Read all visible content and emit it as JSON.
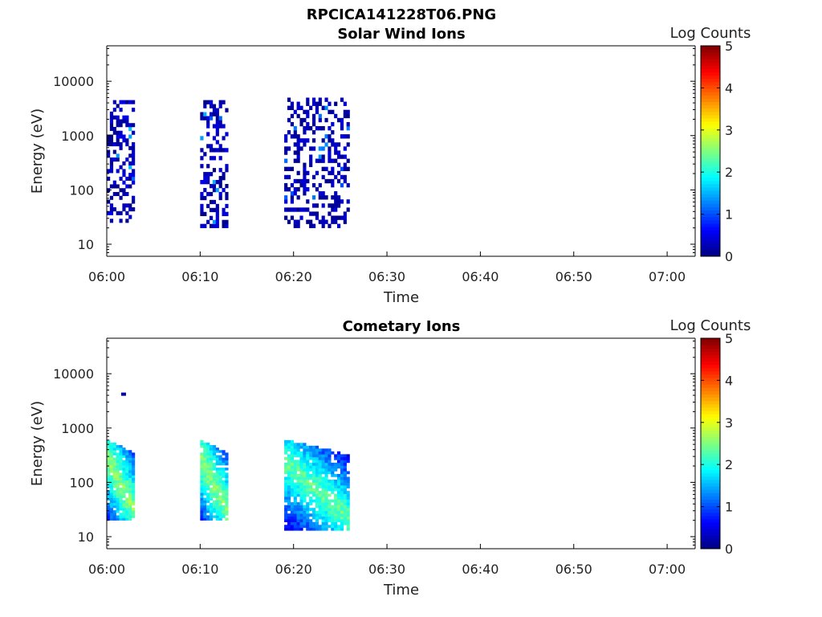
{
  "figure_title": "RPCICA141228T06.PNG",
  "colorbar": {
    "label": "Log Counts",
    "ticks": [
      "0",
      "1",
      "2",
      "3",
      "4",
      "5"
    ],
    "range": [
      0,
      5
    ],
    "colormap": "jet"
  },
  "chart_data": [
    {
      "type": "heatmap",
      "title": "Solar Wind Ions",
      "xlabel": "Time",
      "ylabel": "Energy (eV)",
      "x_ticks": [
        "06:00",
        "06:10",
        "06:20",
        "06:30",
        "06:40",
        "06:50",
        "07:00"
      ],
      "xlim": [
        "06:00",
        "07:03"
      ],
      "y_scale": "log",
      "y_ticks": [
        "10",
        "100",
        "1000",
        "10000"
      ],
      "ylim": [
        6,
        45000
      ],
      "color_range": [
        0,
        5
      ],
      "bursts": [
        {
          "start": "06:00",
          "end": "06:03",
          "energy_min": 25,
          "energy_max": 4500,
          "peak_log_counts": 1.6,
          "density": "sparse"
        },
        {
          "start": "06:10",
          "end": "06:13",
          "energy_min": 20,
          "energy_max": 4500,
          "peak_log_counts": 1.5,
          "density": "sparse"
        },
        {
          "start": "06:19",
          "end": "06:26",
          "energy_min": 20,
          "energy_max": 5000,
          "peak_log_counts": 1.3,
          "density": "sparse"
        }
      ]
    },
    {
      "type": "heatmap",
      "title": "Cometary Ions",
      "xlabel": "Time",
      "ylabel": "Energy (eV)",
      "x_ticks": [
        "06:00",
        "06:10",
        "06:20",
        "06:30",
        "06:40",
        "06:50",
        "07:00"
      ],
      "xlim": [
        "06:00",
        "07:03"
      ],
      "y_scale": "log",
      "y_ticks": [
        "10",
        "100",
        "1000",
        "10000"
      ],
      "ylim": [
        6,
        45000
      ],
      "color_range": [
        0,
        5
      ],
      "bursts": [
        {
          "start": "06:00",
          "end": "06:03",
          "energy_min": 20,
          "energy_max": 600,
          "peak_log_counts": 2.6,
          "density": "dense"
        },
        {
          "start": "06:10",
          "end": "06:13",
          "energy_min": 20,
          "energy_max": 600,
          "peak_log_counts": 2.6,
          "density": "dense"
        },
        {
          "start": "06:19",
          "end": "06:26",
          "energy_min": 13,
          "energy_max": 600,
          "peak_log_counts": 2.4,
          "density": "dense"
        }
      ],
      "isolated_points": [
        {
          "time": "06:01.8",
          "energy": 4200,
          "log_counts": 0.2
        }
      ]
    }
  ]
}
